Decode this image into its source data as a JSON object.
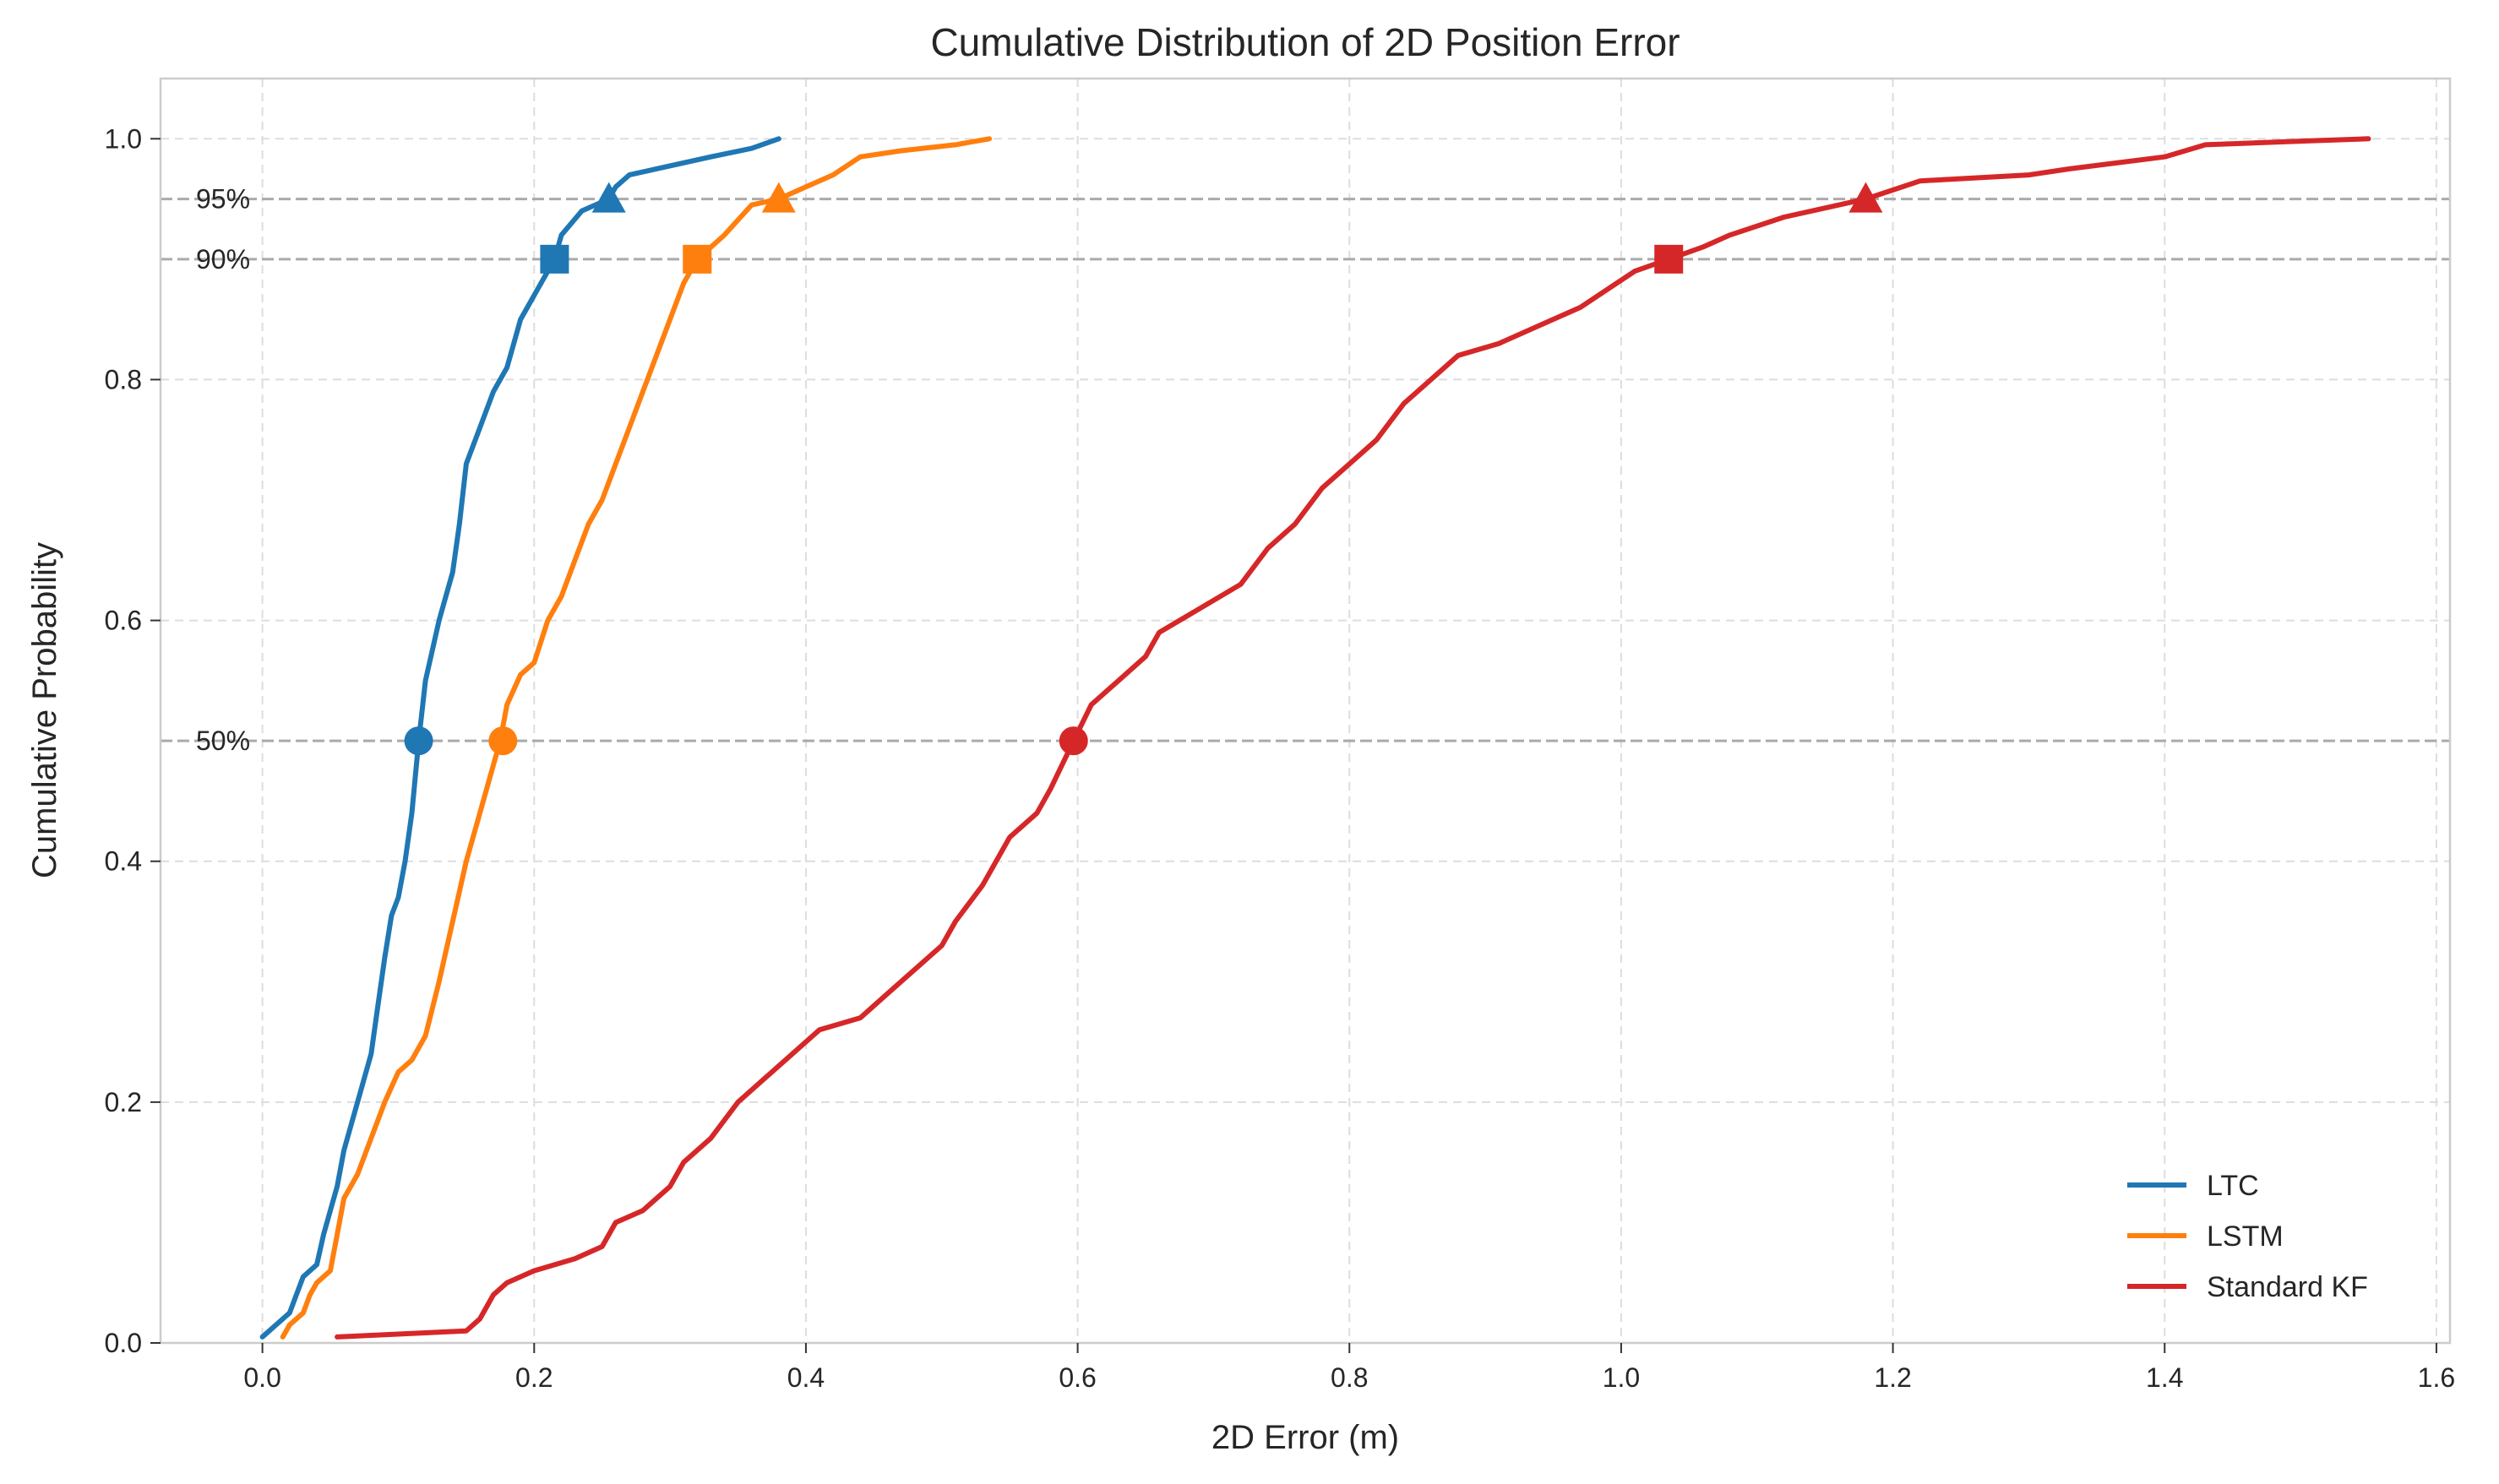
{
  "chart_data": {
    "type": "line",
    "title": "Cumulative Distribution of 2D Position Error",
    "xlabel": "2D Error (m)",
    "ylabel": "Cumulative Probability",
    "xlim": [
      -0.075,
      1.61
    ],
    "ylim": [
      0.0,
      1.05
    ],
    "xticks": [
      "0.0",
      "0.2",
      "0.4",
      "0.6",
      "0.8",
      "1.0",
      "1.2",
      "1.4",
      "1.6"
    ],
    "yticks": [
      "0.0",
      "0.2",
      "0.4",
      "0.6",
      "0.8",
      "1.0"
    ],
    "grid": true,
    "legend_position": "bottom-right",
    "reference_lines": [
      {
        "y": 0.95,
        "label": "95%"
      },
      {
        "y": 0.9,
        "label": "90%"
      },
      {
        "y": 0.5,
        "label": "50%"
      }
    ],
    "series": [
      {
        "name": "LTC",
        "color": "#1f77b4",
        "points": [
          [
            0.0,
            0.005
          ],
          [
            0.01,
            0.015
          ],
          [
            0.02,
            0.025
          ],
          [
            0.025,
            0.04
          ],
          [
            0.03,
            0.055
          ],
          [
            0.04,
            0.065
          ],
          [
            0.045,
            0.09
          ],
          [
            0.05,
            0.11
          ],
          [
            0.055,
            0.13
          ],
          [
            0.06,
            0.16
          ],
          [
            0.07,
            0.2
          ],
          [
            0.08,
            0.24
          ],
          [
            0.085,
            0.28
          ],
          [
            0.09,
            0.32
          ],
          [
            0.095,
            0.355
          ],
          [
            0.1,
            0.37
          ],
          [
            0.105,
            0.4
          ],
          [
            0.11,
            0.44
          ],
          [
            0.115,
            0.5
          ],
          [
            0.12,
            0.55
          ],
          [
            0.13,
            0.6
          ],
          [
            0.14,
            0.64
          ],
          [
            0.145,
            0.68
          ],
          [
            0.15,
            0.73
          ],
          [
            0.16,
            0.76
          ],
          [
            0.17,
            0.79
          ],
          [
            0.18,
            0.81
          ],
          [
            0.19,
            0.85
          ],
          [
            0.2,
            0.87
          ],
          [
            0.21,
            0.89
          ],
          [
            0.215,
            0.9
          ],
          [
            0.22,
            0.92
          ],
          [
            0.235,
            0.94
          ],
          [
            0.255,
            0.95
          ],
          [
            0.26,
            0.96
          ],
          [
            0.27,
            0.97
          ],
          [
            0.29,
            0.975
          ],
          [
            0.31,
            0.98
          ],
          [
            0.33,
            0.985
          ],
          [
            0.36,
            0.992
          ],
          [
            0.38,
            1.0
          ]
        ],
        "markers": [
          {
            "shape": "circle",
            "x": 0.115,
            "y": 0.5
          },
          {
            "shape": "square",
            "x": 0.215,
            "y": 0.9
          },
          {
            "shape": "triangle",
            "x": 0.255,
            "y": 0.95
          }
        ]
      },
      {
        "name": "LSTM",
        "color": "#ff7f0e",
        "points": [
          [
            0.015,
            0.005
          ],
          [
            0.02,
            0.015
          ],
          [
            0.03,
            0.025
          ],
          [
            0.035,
            0.04
          ],
          [
            0.04,
            0.05
          ],
          [
            0.05,
            0.06
          ],
          [
            0.055,
            0.09
          ],
          [
            0.06,
            0.12
          ],
          [
            0.07,
            0.14
          ],
          [
            0.08,
            0.17
          ],
          [
            0.09,
            0.2
          ],
          [
            0.1,
            0.225
          ],
          [
            0.11,
            0.235
          ],
          [
            0.12,
            0.255
          ],
          [
            0.13,
            0.3
          ],
          [
            0.14,
            0.35
          ],
          [
            0.15,
            0.4
          ],
          [
            0.16,
            0.44
          ],
          [
            0.17,
            0.48
          ],
          [
            0.175,
            0.5
          ],
          [
            0.18,
            0.53
          ],
          [
            0.19,
            0.555
          ],
          [
            0.2,
            0.565
          ],
          [
            0.21,
            0.6
          ],
          [
            0.22,
            0.62
          ],
          [
            0.23,
            0.65
          ],
          [
            0.24,
            0.68
          ],
          [
            0.25,
            0.7
          ],
          [
            0.26,
            0.73
          ],
          [
            0.27,
            0.76
          ],
          [
            0.28,
            0.79
          ],
          [
            0.29,
            0.82
          ],
          [
            0.3,
            0.85
          ],
          [
            0.31,
            0.88
          ],
          [
            0.32,
            0.9
          ],
          [
            0.33,
            0.91
          ],
          [
            0.34,
            0.92
          ],
          [
            0.36,
            0.945
          ],
          [
            0.38,
            0.95
          ],
          [
            0.4,
            0.96
          ],
          [
            0.42,
            0.97
          ],
          [
            0.44,
            0.985
          ],
          [
            0.47,
            0.99
          ],
          [
            0.51,
            0.995
          ],
          [
            0.535,
            1.0
          ]
        ],
        "markers": [
          {
            "shape": "circle",
            "x": 0.177,
            "y": 0.5
          },
          {
            "shape": "square",
            "x": 0.32,
            "y": 0.9
          },
          {
            "shape": "triangle",
            "x": 0.38,
            "y": 0.95
          }
        ]
      },
      {
        "name": "Standard KF",
        "color": "#d62728",
        "points": [
          [
            0.055,
            0.005
          ],
          [
            0.15,
            0.01
          ],
          [
            0.16,
            0.02
          ],
          [
            0.17,
            0.04
          ],
          [
            0.18,
            0.05
          ],
          [
            0.2,
            0.06
          ],
          [
            0.23,
            0.07
          ],
          [
            0.25,
            0.08
          ],
          [
            0.26,
            0.1
          ],
          [
            0.28,
            0.11
          ],
          [
            0.3,
            0.13
          ],
          [
            0.31,
            0.15
          ],
          [
            0.33,
            0.17
          ],
          [
            0.35,
            0.2
          ],
          [
            0.37,
            0.22
          ],
          [
            0.39,
            0.24
          ],
          [
            0.41,
            0.26
          ],
          [
            0.44,
            0.27
          ],
          [
            0.46,
            0.29
          ],
          [
            0.48,
            0.31
          ],
          [
            0.5,
            0.33
          ],
          [
            0.51,
            0.35
          ],
          [
            0.53,
            0.38
          ],
          [
            0.54,
            0.4
          ],
          [
            0.55,
            0.42
          ],
          [
            0.57,
            0.44
          ],
          [
            0.58,
            0.46
          ],
          [
            0.597,
            0.5
          ],
          [
            0.61,
            0.53
          ],
          [
            0.63,
            0.55
          ],
          [
            0.65,
            0.57
          ],
          [
            0.66,
            0.59
          ],
          [
            0.69,
            0.61
          ],
          [
            0.72,
            0.63
          ],
          [
            0.74,
            0.66
          ],
          [
            0.76,
            0.68
          ],
          [
            0.78,
            0.71
          ],
          [
            0.8,
            0.73
          ],
          [
            0.82,
            0.75
          ],
          [
            0.84,
            0.78
          ],
          [
            0.86,
            0.8
          ],
          [
            0.88,
            0.82
          ],
          [
            0.91,
            0.83
          ],
          [
            0.95,
            0.85
          ],
          [
            0.97,
            0.86
          ],
          [
            0.99,
            0.875
          ],
          [
            1.01,
            0.89
          ],
          [
            1.035,
            0.9
          ],
          [
            1.06,
            0.91
          ],
          [
            1.08,
            0.92
          ],
          [
            1.12,
            0.935
          ],
          [
            1.18,
            0.95
          ],
          [
            1.22,
            0.965
          ],
          [
            1.3,
            0.97
          ],
          [
            1.33,
            0.975
          ],
          [
            1.4,
            0.985
          ],
          [
            1.43,
            0.995
          ],
          [
            1.5,
            0.998
          ],
          [
            1.55,
            1.0
          ]
        ],
        "markers": [
          {
            "shape": "circle",
            "x": 0.597,
            "y": 0.5
          },
          {
            "shape": "square",
            "x": 1.035,
            "y": 0.9
          },
          {
            "shape": "triangle",
            "x": 1.18,
            "y": 0.95
          }
        ]
      }
    ]
  }
}
